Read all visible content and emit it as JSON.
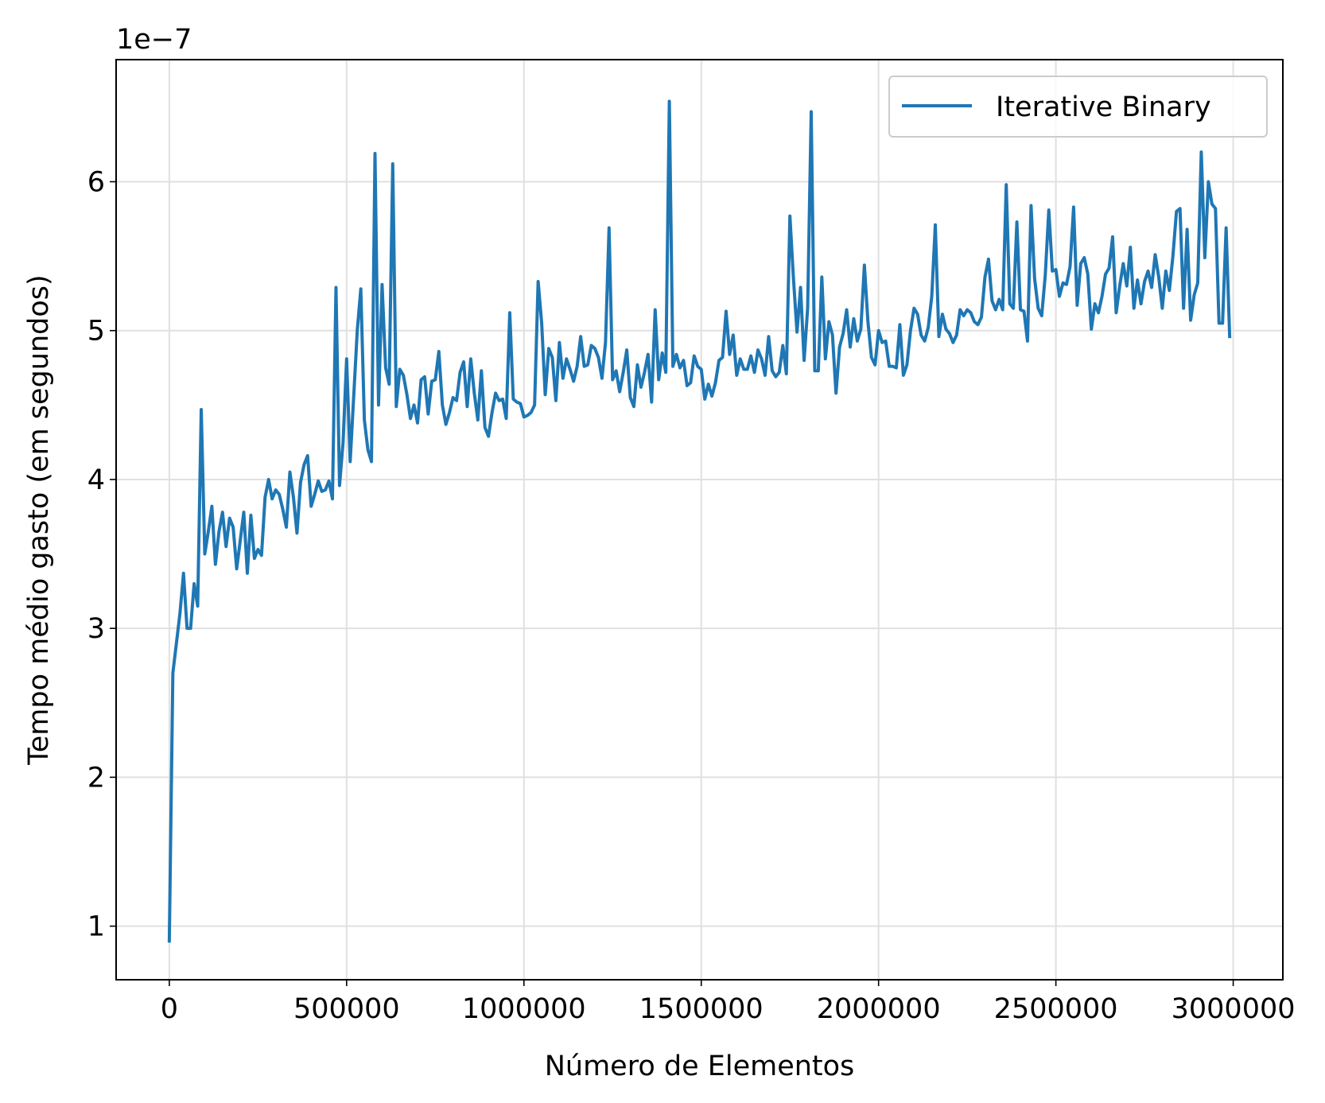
{
  "chart_data": {
    "type": "line",
    "title": "",
    "xlabel": "Número de Elementos",
    "ylabel": "Tempo médio gasto (em segundos)",
    "y_offset_text": "1e−7",
    "y_scale_factor": 1e-07,
    "xlim": [
      -150000,
      3140000
    ],
    "ylim": [
      0.64,
      6.82
    ],
    "xticks": [
      0,
      500000,
      1000000,
      1500000,
      2000000,
      2500000,
      3000000
    ],
    "xtick_labels": [
      "0",
      "500000",
      "1000000",
      "1500000",
      "2000000",
      "2500000",
      "3000000"
    ],
    "yticks": [
      1,
      2,
      3,
      4,
      5,
      6
    ],
    "ytick_labels": [
      "1",
      "2",
      "3",
      "4",
      "5",
      "6"
    ],
    "grid": true,
    "legend_position": "top-right",
    "colors": {
      "series": "#1f77b4",
      "grid": "#e0e0e0",
      "axes": "#000000"
    },
    "series": [
      {
        "name": "Iterative Binary",
        "x": [
          0,
          10000,
          20000,
          30000,
          40000,
          50000,
          60000,
          70000,
          80000,
          90000,
          100000,
          110000,
          120000,
          130000,
          140000,
          150000,
          160000,
          170000,
          180000,
          190000,
          200000,
          210000,
          220000,
          230000,
          240000,
          250000,
          260000,
          270000,
          280000,
          290000,
          300000,
          310000,
          320000,
          330000,
          340000,
          350000,
          360000,
          370000,
          380000,
          390000,
          400000,
          410000,
          420000,
          430000,
          440000,
          450000,
          460000,
          470000,
          480000,
          490000,
          500000,
          510000,
          520000,
          530000,
          540000,
          550000,
          560000,
          570000,
          580000,
          590000,
          600000,
          610000,
          620000,
          630000,
          640000,
          650000,
          660000,
          670000,
          680000,
          690000,
          700000,
          710000,
          720000,
          730000,
          740000,
          750000,
          760000,
          770000,
          780000,
          790000,
          800000,
          810000,
          820000,
          830000,
          840000,
          850000,
          860000,
          870000,
          880000,
          890000,
          900000,
          910000,
          920000,
          930000,
          940000,
          950000,
          960000,
          970000,
          980000,
          990000,
          1000000,
          1010000,
          1020000,
          1030000,
          1040000,
          1050000,
          1060000,
          1070000,
          1080000,
          1090000,
          1100000,
          1110000,
          1120000,
          1130000,
          1140000,
          1150000,
          1160000,
          1170000,
          1180000,
          1190000,
          1200000,
          1210000,
          1220000,
          1230000,
          1240000,
          1250000,
          1260000,
          1270000,
          1280000,
          1290000,
          1300000,
          1310000,
          1320000,
          1330000,
          1340000,
          1350000,
          1360000,
          1370000,
          1380000,
          1390000,
          1400000,
          1410000,
          1420000,
          1430000,
          1440000,
          1450000,
          1460000,
          1470000,
          1480000,
          1490000,
          1500000,
          1510000,
          1520000,
          1530000,
          1540000,
          1550000,
          1560000,
          1570000,
          1580000,
          1590000,
          1600000,
          1610000,
          1620000,
          1630000,
          1640000,
          1650000,
          1660000,
          1670000,
          1680000,
          1690000,
          1700000,
          1710000,
          1720000,
          1730000,
          1740000,
          1750000,
          1760000,
          1770000,
          1780000,
          1790000,
          1800000,
          1810000,
          1820000,
          1830000,
          1840000,
          1850000,
          1860000,
          1870000,
          1880000,
          1890000,
          1900000,
          1910000,
          1920000,
          1930000,
          1940000,
          1950000,
          1960000,
          1970000,
          1980000,
          1990000,
          2000000,
          2010000,
          2020000,
          2030000,
          2040000,
          2050000,
          2060000,
          2070000,
          2080000,
          2090000,
          2100000,
          2110000,
          2120000,
          2130000,
          2140000,
          2150000,
          2160000,
          2170000,
          2180000,
          2190000,
          2200000,
          2210000,
          2220000,
          2230000,
          2240000,
          2250000,
          2260000,
          2270000,
          2280000,
          2290000,
          2300000,
          2310000,
          2320000,
          2330000,
          2340000,
          2350000,
          2360000,
          2370000,
          2380000,
          2390000,
          2400000,
          2410000,
          2420000,
          2430000,
          2440000,
          2450000,
          2460000,
          2470000,
          2480000,
          2490000,
          2500000,
          2510000,
          2520000,
          2530000,
          2540000,
          2550000,
          2560000,
          2570000,
          2580000,
          2590000,
          2600000,
          2610000,
          2620000,
          2630000,
          2640000,
          2650000,
          2660000,
          2670000,
          2680000,
          2690000,
          2700000,
          2710000,
          2720000,
          2730000,
          2740000,
          2750000,
          2760000,
          2770000,
          2780000,
          2790000,
          2800000,
          2810000,
          2820000,
          2830000,
          2840000,
          2850000,
          2860000,
          2870000,
          2880000,
          2890000,
          2900000,
          2910000,
          2920000,
          2930000,
          2940000,
          2950000,
          2960000,
          2970000,
          2980000,
          2990000
        ],
        "y": [
          0.9,
          2.7,
          2.9,
          3.1,
          3.37,
          3.0,
          3.0,
          3.3,
          3.15,
          4.47,
          3.5,
          3.65,
          3.82,
          3.43,
          3.65,
          3.78,
          3.55,
          3.74,
          3.68,
          3.4,
          3.59,
          3.78,
          3.37,
          3.76,
          3.47,
          3.53,
          3.49,
          3.88,
          4.0,
          3.87,
          3.93,
          3.9,
          3.8,
          3.68,
          4.05,
          3.88,
          3.64,
          3.98,
          4.1,
          4.16,
          3.82,
          3.9,
          3.99,
          3.92,
          3.93,
          3.99,
          3.87,
          5.29,
          3.96,
          4.25,
          4.81,
          4.12,
          4.56,
          5.0,
          5.28,
          4.4,
          4.2,
          4.12,
          6.19,
          4.5,
          5.31,
          4.75,
          4.64,
          6.12,
          4.49,
          4.74,
          4.7,
          4.57,
          4.41,
          4.5,
          4.38,
          4.67,
          4.69,
          4.44,
          4.66,
          4.67,
          4.86,
          4.5,
          4.37,
          4.45,
          4.55,
          4.53,
          4.72,
          4.79,
          4.49,
          4.81,
          4.58,
          4.4,
          4.73,
          4.35,
          4.29,
          4.45,
          4.58,
          4.53,
          4.54,
          4.41,
          5.12,
          4.54,
          4.52,
          4.51,
          4.42,
          4.43,
          4.45,
          4.5,
          5.33,
          5.05,
          4.57,
          4.88,
          4.82,
          4.53,
          4.92,
          4.68,
          4.81,
          4.74,
          4.66,
          4.76,
          4.96,
          4.76,
          4.77,
          4.9,
          4.88,
          4.82,
          4.68,
          4.92,
          5.69,
          4.67,
          4.73,
          4.59,
          4.72,
          4.87,
          4.55,
          4.49,
          4.77,
          4.62,
          4.72,
          4.84,
          4.52,
          5.14,
          4.67,
          4.85,
          4.72,
          6.54,
          4.76,
          4.84,
          4.75,
          4.8,
          4.63,
          4.65,
          4.83,
          4.76,
          4.74,
          4.54,
          4.64,
          4.56,
          4.65,
          4.8,
          4.82,
          5.13,
          4.84,
          4.97,
          4.7,
          4.81,
          4.74,
          4.74,
          4.83,
          4.72,
          4.87,
          4.81,
          4.7,
          4.96,
          4.73,
          4.69,
          4.72,
          4.9,
          4.71,
          5.77,
          5.35,
          4.99,
          5.29,
          4.8,
          5.15,
          6.47,
          4.73,
          4.73,
          5.36,
          4.81,
          5.06,
          4.97,
          4.58,
          4.89,
          4.98,
          5.14,
          4.89,
          5.08,
          4.93,
          5.01,
          5.44,
          5.06,
          4.82,
          4.77,
          5.0,
          4.92,
          4.93,
          4.76,
          4.76,
          4.75,
          5.04,
          4.7,
          4.77,
          5.0,
          5.15,
          5.11,
          4.97,
          4.93,
          5.02,
          5.23,
          5.71,
          4.96,
          5.11,
          5.01,
          4.98,
          4.92,
          4.97,
          5.14,
          5.1,
          5.14,
          5.12,
          5.06,
          5.04,
          5.09,
          5.36,
          5.48,
          5.2,
          5.14,
          5.21,
          5.14,
          5.98,
          5.18,
          5.15,
          5.73,
          5.14,
          5.13,
          4.93,
          5.84,
          5.35,
          5.15,
          5.1,
          5.37,
          5.81,
          5.4,
          5.41,
          5.23,
          5.32,
          5.31,
          5.43,
          5.83,
          5.17,
          5.45,
          5.49,
          5.38,
          5.01,
          5.18,
          5.12,
          5.23,
          5.38,
          5.42,
          5.63,
          5.12,
          5.3,
          5.45,
          5.3,
          5.56,
          5.15,
          5.34,
          5.18,
          5.33,
          5.4,
          5.29,
          5.51,
          5.36,
          5.15,
          5.4,
          5.27,
          5.5,
          5.8,
          5.82,
          5.15,
          5.68,
          5.07,
          5.24,
          5.32,
          6.2,
          5.49,
          6.0,
          5.85,
          5.82,
          5.05,
          5.05,
          5.69,
          4.96
        ]
      }
    ]
  }
}
